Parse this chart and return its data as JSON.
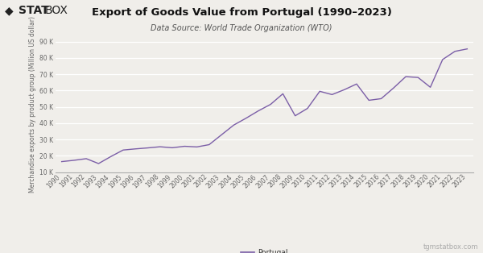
{
  "title": "Export of Goods Value from Portugal (1990–2023)",
  "subtitle": "Data Source: World Trade Organization (WTO)",
  "ylabel": "Merchandise exports by product group (Million US dollar)",
  "watermark": "tgmstatbox.com",
  "legend_label": "Portugal",
  "line_color": "#7B5EA7",
  "background_color": "#f0eeea",
  "years": [
    1990,
    1991,
    1992,
    1993,
    1994,
    1995,
    1996,
    1997,
    1998,
    1999,
    2000,
    2001,
    2002,
    2003,
    2004,
    2005,
    2006,
    2007,
    2008,
    2009,
    2010,
    2011,
    2012,
    2013,
    2014,
    2015,
    2016,
    2017,
    2018,
    2019,
    2020,
    2021,
    2022,
    2023
  ],
  "values": [
    16400,
    17200,
    18200,
    15200,
    19500,
    23500,
    24200,
    24800,
    25500,
    24900,
    25800,
    25400,
    26800,
    32800,
    38800,
    43000,
    47500,
    51500,
    58000,
    44500,
    49000,
    59500,
    57500,
    60500,
    64000,
    54000,
    55000,
    61500,
    68500,
    68000,
    62000,
    79000,
    84000,
    85500
  ],
  "ylim_min": 10000,
  "ylim_max": 93000,
  "yticks": [
    10000,
    20000,
    30000,
    40000,
    50000,
    60000,
    70000,
    80000,
    90000
  ],
  "title_fontsize": 9.5,
  "subtitle_fontsize": 7.0,
  "ylabel_fontsize": 5.5,
  "tick_fontsize": 5.5,
  "legend_fontsize": 6.5,
  "watermark_fontsize": 6.0
}
